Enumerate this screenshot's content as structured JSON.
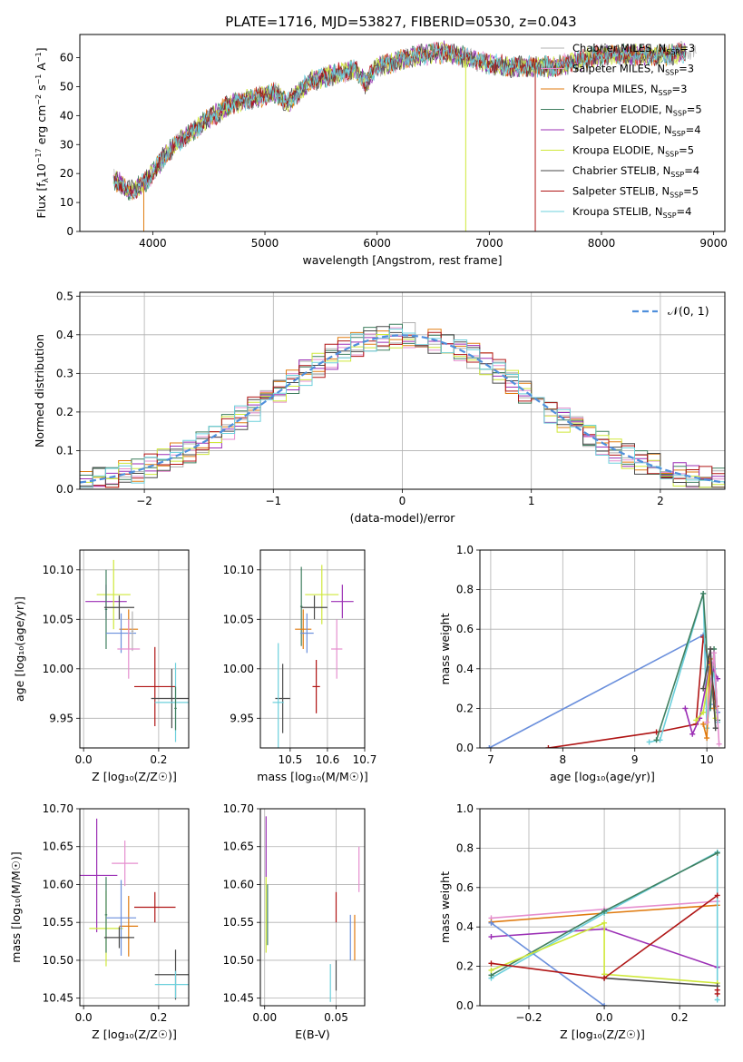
{
  "figure": {
    "title": "PLATE=1716, MJD=53827, FIBERID=0530, z=0.043"
  },
  "colors": {
    "chabrier_miles": "#b0b0b0",
    "salpeter_miles": "#e58fcf",
    "kroupa_miles": "#e07b10",
    "chabrier_elodie": "#3f7f5f",
    "salpeter_elodie": "#9b2fb5",
    "kroupa_elodie": "#cfe83a",
    "chabrier_stelib": "#4a4a4a",
    "salpeter_stelib": "#b01515",
    "kroupa_stelib": "#6cd0dc",
    "gauss": "#4f8fdc",
    "blue_line": "#6a8fdc"
  },
  "chart_data": [
    {
      "id": "spectrum",
      "type": "line",
      "title": "PLATE=1716, MJD=53827, FIBERID=0530, z=0.043",
      "xlabel": "wavelength [Angstrom, rest frame]",
      "ylabel_parts": [
        "Flux [f",
        "λ",
        "10",
        "−17",
        " erg cm",
        "−2",
        " s",
        "−1",
        " A",
        "−1",
        "]"
      ],
      "xlim": [
        3350,
        9100
      ],
      "ylim": [
        0,
        68
      ],
      "xticks": [
        "4000",
        "5000",
        "6000",
        "7000",
        "8000",
        "9000"
      ],
      "yticks": [
        "0",
        "10",
        "20",
        "30",
        "40",
        "50",
        "60"
      ],
      "grid": false,
      "legend_position": "upper-right",
      "legend": [
        {
          "label": "Chabrier MILES, N",
          "sub": "SSP",
          "tail": "=3"
        },
        {
          "label": "Salpeter MILES, N",
          "sub": "SSP",
          "tail": "=3"
        },
        {
          "label": "Kroupa MILES, N",
          "sub": "SSP",
          "tail": "=3"
        },
        {
          "label": "Chabrier ELODIE, N",
          "sub": "SSP",
          "tail": "=5"
        },
        {
          "label": "Salpeter ELODIE, N",
          "sub": "SSP",
          "tail": "=4"
        },
        {
          "label": "Kroupa ELODIE, N",
          "sub": "SSP",
          "tail": "=5"
        },
        {
          "label": "Chabrier STELIB, N",
          "sub": "SSP",
          "tail": "=4"
        },
        {
          "label": "Salpeter STELIB, N",
          "sub": "SSP",
          "tail": "=5"
        },
        {
          "label": "Kroupa STELIB, N",
          "sub": "SSP",
          "tail": "=4"
        }
      ],
      "continuum": [
        [
          3650,
          18
        ],
        [
          3800,
          14
        ],
        [
          3900,
          16
        ],
        [
          4000,
          20
        ],
        [
          4100,
          26
        ],
        [
          4200,
          30
        ],
        [
          4300,
          33
        ],
        [
          4400,
          36
        ],
        [
          4500,
          39
        ],
        [
          4700,
          44
        ],
        [
          4900,
          46
        ],
        [
          5100,
          48
        ],
        [
          5200,
          44
        ],
        [
          5400,
          52
        ],
        [
          5600,
          54
        ],
        [
          5800,
          56
        ],
        [
          5900,
          51
        ],
        [
          6000,
          57
        ],
        [
          6200,
          59
        ],
        [
          6400,
          61
        ],
        [
          6600,
          62
        ],
        [
          6800,
          60
        ],
        [
          7000,
          58
        ],
        [
          7200,
          57
        ],
        [
          7400,
          57
        ],
        [
          7600,
          57
        ],
        [
          7800,
          59
        ],
        [
          8000,
          61
        ],
        [
          8200,
          61
        ],
        [
          8400,
          61
        ],
        [
          8600,
          61
        ],
        [
          8750,
          62
        ]
      ]
    },
    {
      "id": "residuals",
      "type": "histogram",
      "xlabel": "(data-model)/error",
      "ylabel": "Normed distribution",
      "xlim": [
        -2.5,
        2.5
      ],
      "ylim": [
        0,
        0.51
      ],
      "xticks": [
        "−2",
        "−1",
        "0",
        "1",
        "2"
      ],
      "yticks": [
        "0.0",
        "0.1",
        "0.2",
        "0.3",
        "0.4",
        "0.5"
      ],
      "grid": true,
      "legend_position": "upper-right",
      "gauss_label": "𝒩(0, 1)",
      "bin_width": 0.1
    },
    {
      "id": "age_vs_Z",
      "type": "scatter",
      "xlabel": "Z [log₁₀(Z/Z☉)]",
      "ylabel": "age  [log₁₀(age/yr)]",
      "xlim": [
        -0.01,
        0.28
      ],
      "ylim": [
        9.92,
        10.12
      ],
      "xticks": [
        "0.0",
        "0.2"
      ],
      "yticks": [
        "9.95",
        "10.00",
        "10.05",
        "10.10"
      ],
      "grid": true,
      "points": [
        {
          "m": "salpeter_elodie",
          "x": 0.06,
          "xerr": 0.055,
          "y": 10.068,
          "yerr": 0.017
        },
        {
          "m": "kroupa_elodie",
          "x": 0.08,
          "xerr": 0.045,
          "y": 10.075,
          "yerr": 0.035
        },
        {
          "m": "chabrier_elodie",
          "x": 0.06,
          "xerr": 0.003,
          "y": 10.06,
          "yerr": 0.04
        },
        {
          "m": "chabrier_stelib",
          "x": 0.095,
          "xerr": 0.04,
          "y": 10.062,
          "yerr": 0.012
        },
        {
          "m": "kroupa_miles",
          "x": 0.12,
          "xerr": 0.025,
          "y": 10.04,
          "yerr": 0.02
        },
        {
          "m": "blue_line",
          "x": 0.1,
          "xerr": 0.04,
          "y": 10.036,
          "yerr": 0.02
        },
        {
          "m": "chabrier_miles",
          "x": 0.13,
          "xerr": 0.003,
          "y": 10.038,
          "yerr": 0.02
        },
        {
          "m": "salpeter_miles",
          "x": 0.12,
          "xerr": 0.03,
          "y": 10.02,
          "yerr": 0.03
        },
        {
          "m": "salpeter_stelib",
          "x": 0.19,
          "xerr": 0.055,
          "y": 9.982,
          "yerr": 0.04
        },
        {
          "m": "chabrier_stelib",
          "x": 0.235,
          "xerr": 0.055,
          "y": 9.97,
          "yerr": 0.03
        },
        {
          "m": "kroupa_stelib",
          "x": 0.245,
          "xerr": 0.055,
          "y": 9.966,
          "yerr": 0.04
        },
        {
          "m": "chabrier_elodie",
          "x": 0.245,
          "xerr": 0.003,
          "y": 9.96,
          "yerr": 0.022
        }
      ]
    },
    {
      "id": "age_vs_mass",
      "type": "scatter",
      "xlabel": "mass [log₁₀(M/M☉)]",
      "ylabel": "",
      "xlim": [
        10.42,
        10.7
      ],
      "ylim": [
        9.92,
        10.12
      ],
      "xticks": [
        "10.5",
        "10.6",
        "10.7"
      ],
      "yticks": [
        "9.95",
        "10.00",
        "10.05",
        "10.10"
      ],
      "grid": true,
      "points": [
        {
          "m": "salpeter_elodie",
          "x": 10.64,
          "xerr": 0.03,
          "y": 10.068,
          "yerr": 0.017
        },
        {
          "m": "kroupa_elodie",
          "x": 10.585,
          "xerr": 0.045,
          "y": 10.075,
          "yerr": 0.03
        },
        {
          "m": "chabrier_elodie",
          "x": 10.53,
          "xerr": 0.003,
          "y": 10.063,
          "yerr": 0.04
        },
        {
          "m": "chabrier_stelib",
          "x": 10.565,
          "xerr": 0.035,
          "y": 10.062,
          "yerr": 0.012
        },
        {
          "m": "kroupa_miles",
          "x": 10.535,
          "xerr": 0.022,
          "y": 10.04,
          "yerr": 0.02
        },
        {
          "m": "blue_line",
          "x": 10.545,
          "xerr": 0.018,
          "y": 10.036,
          "yerr": 0.02
        },
        {
          "m": "salpeter_miles",
          "x": 10.625,
          "xerr": 0.015,
          "y": 10.02,
          "yerr": 0.03
        },
        {
          "m": "salpeter_stelib",
          "x": 10.57,
          "xerr": 0.01,
          "y": 9.982,
          "yerr": 0.027
        },
        {
          "m": "chabrier_stelib",
          "x": 10.48,
          "xerr": 0.02,
          "y": 9.97,
          "yerr": 0.035
        },
        {
          "m": "kroupa_stelib",
          "x": 10.468,
          "xerr": 0.015,
          "y": 9.966,
          "yerr": 0.06
        }
      ]
    },
    {
      "id": "weight_vs_age",
      "type": "line",
      "xlabel": "age  [log₁₀(age/yr)]",
      "ylabel": "mass weight",
      "xlim": [
        6.85,
        10.25
      ],
      "ylim": [
        0,
        1
      ],
      "xticks": [
        "7",
        "8",
        "9",
        "10"
      ],
      "yticks": [
        "0.0",
        "0.2",
        "0.4",
        "0.6",
        "0.8",
        "1.0"
      ],
      "grid": true,
      "series": [
        {
          "m": "blue_line",
          "points": [
            [
              6.98,
              0
            ],
            [
              9.95,
              0.57
            ],
            [
              10.1,
              0.22
            ],
            [
              10.15,
              0.18
            ]
          ]
        },
        {
          "m": "salpeter_stelib",
          "points": [
            [
              7.8,
              0
            ],
            [
              9.3,
              0.08
            ],
            [
              9.85,
              0.12
            ],
            [
              9.95,
              0.56
            ],
            [
              10.05,
              0.4
            ],
            [
              10.13,
              0.21
            ]
          ]
        },
        {
          "m": "kroupa_stelib",
          "points": [
            [
              9.2,
              0.03
            ],
            [
              9.35,
              0.04
            ],
            [
              9.95,
              0.78
            ],
            [
              10.0,
              0.1
            ],
            [
              10.1,
              0.4
            ],
            [
              10.15,
              0.13
            ]
          ]
        },
        {
          "m": "chabrier_elodie",
          "points": [
            [
              9.3,
              0.04
            ],
            [
              9.95,
              0.78
            ],
            [
              10.05,
              0.2
            ],
            [
              10.1,
              0.5
            ],
            [
              10.15,
              0.14
            ]
          ]
        },
        {
          "m": "salpeter_elodie",
          "points": [
            [
              9.7,
              0.2
            ],
            [
              9.8,
              0.07
            ],
            [
              9.9,
              0.15
            ],
            [
              10.05,
              0.43
            ],
            [
              10.15,
              0.35
            ]
          ]
        },
        {
          "m": "kroupa_elodie",
          "points": [
            [
              9.85,
              0.14
            ],
            [
              9.95,
              0.18
            ],
            [
              10.05,
              0.42
            ],
            [
              10.12,
              0.15
            ]
          ]
        },
        {
          "m": "kroupa_miles",
          "points": [
            [
              9.95,
              0.12
            ],
            [
              10.0,
              0.05
            ],
            [
              10.05,
              0.45
            ],
            [
              10.1,
              0.2
            ]
          ]
        },
        {
          "m": "salpeter_miles",
          "points": [
            [
              10.0,
              0.13
            ],
            [
              10.1,
              0.48
            ],
            [
              10.17,
              0.02
            ]
          ]
        },
        {
          "m": "chabrier_stelib",
          "points": [
            [
              9.95,
              0.3
            ],
            [
              10.05,
              0.5
            ],
            [
              10.12,
              0.1
            ]
          ]
        }
      ]
    },
    {
      "id": "mass_vs_Z",
      "type": "scatter",
      "xlabel": "Z [log₁₀(Z/Z☉)]",
      "ylabel": "mass [log₁₀(M/M☉)]",
      "xlim": [
        -0.01,
        0.28
      ],
      "ylim": [
        10.44,
        10.7
      ],
      "xticks": [
        "0.0",
        "0.2"
      ],
      "yticks": [
        "10.45",
        "10.50",
        "10.55",
        "10.60",
        "10.65",
        "10.70"
      ],
      "grid": true,
      "points": [
        {
          "m": "salpeter_elodie",
          "x": 0.035,
          "xerr": 0.055,
          "y": 10.612,
          "yerr": 0.075
        },
        {
          "m": "salpeter_miles",
          "x": 0.11,
          "xerr": 0.035,
          "y": 10.628,
          "yerr": 0.03
        },
        {
          "m": "kroupa_elodie",
          "x": 0.06,
          "xerr": 0.045,
          "y": 10.542,
          "yerr": 0.05
        },
        {
          "m": "chabrier_elodie",
          "x": 0.06,
          "xerr": 0.003,
          "y": 10.56,
          "yerr": 0.05
        },
        {
          "m": "kroupa_miles",
          "x": 0.12,
          "xerr": 0.025,
          "y": 10.545,
          "yerr": 0.04
        },
        {
          "m": "blue_line",
          "x": 0.1,
          "xerr": 0.04,
          "y": 10.556,
          "yerr": 0.05
        },
        {
          "m": "chabrier_stelib",
          "x": 0.095,
          "xerr": 0.04,
          "y": 10.53,
          "yerr": 0.014
        },
        {
          "m": "salpeter_stelib",
          "x": 0.19,
          "xerr": 0.055,
          "y": 10.57,
          "yerr": 0.02
        },
        {
          "m": "chabrier_stelib",
          "x": 0.245,
          "xerr": 0.055,
          "y": 10.481,
          "yerr": 0.033
        },
        {
          "m": "kroupa_stelib",
          "x": 0.245,
          "xerr": 0.055,
          "y": 10.468,
          "yerr": 0.018
        }
      ]
    },
    {
      "id": "mass_vs_ebv",
      "type": "scatter",
      "xlabel": "E(B-V)",
      "ylabel": "",
      "xlim": [
        -0.003,
        0.07
      ],
      "ylim": [
        10.44,
        10.7
      ],
      "xticks": [
        "0.00",
        "0.05"
      ],
      "yticks": [
        "10.45",
        "10.50",
        "10.55",
        "10.60",
        "10.65",
        "10.70"
      ],
      "grid": true,
      "points": [
        {
          "m": "salpeter_elodie",
          "x": 0.001,
          "xerr": 0.0,
          "y": 10.65,
          "yerr": 0.04
        },
        {
          "m": "kroupa_elodie",
          "x": 0.001,
          "xerr": 0.0,
          "y": 10.56,
          "yerr": 0.05
        },
        {
          "m": "chabrier_elodie",
          "x": 0.002,
          "xerr": 0.0,
          "y": 10.56,
          "yerr": 0.04
        },
        {
          "m": "salpeter_miles",
          "x": 0.066,
          "xerr": 0.0,
          "y": 10.62,
          "yerr": 0.03
        },
        {
          "m": "salpeter_stelib",
          "x": 0.05,
          "xerr": 0.0,
          "y": 10.57,
          "yerr": 0.02
        },
        {
          "m": "blue_line",
          "x": 0.06,
          "xerr": 0.0,
          "y": 10.53,
          "yerr": 0.03
        },
        {
          "m": "kroupa_miles",
          "x": 0.063,
          "xerr": 0.0,
          "y": 10.53,
          "yerr": 0.03
        },
        {
          "m": "chabrier_stelib",
          "x": 0.05,
          "xerr": 0.0,
          "y": 10.48,
          "yerr": 0.02
        },
        {
          "m": "kroupa_stelib",
          "x": 0.046,
          "xerr": 0.0,
          "y": 10.47,
          "yerr": 0.025
        }
      ]
    },
    {
      "id": "weight_vs_Z",
      "type": "line",
      "xlabel": "Z [log₁₀(Z/Z☉)]",
      "ylabel": "mass weight",
      "xlim": [
        -0.33,
        0.32
      ],
      "ylim": [
        0,
        1
      ],
      "xticks": [
        "−0.2",
        "0.0",
        "0.2"
      ],
      "yticks": [
        "0.0",
        "0.2",
        "0.4",
        "0.6",
        "0.8",
        "1.0"
      ],
      "grid": true,
      "series": [
        {
          "m": "salpeter_miles",
          "points": [
            [
              -0.3,
              0.445
            ],
            [
              0.0,
              0.49
            ],
            [
              0.3,
              0.53
            ]
          ]
        },
        {
          "m": "kroupa_miles",
          "points": [
            [
              -0.3,
              0.425
            ],
            [
              0.0,
              0.47
            ],
            [
              0.3,
              0.51
            ]
          ]
        },
        {
          "m": "salpeter_elodie",
          "points": [
            [
              -0.3,
              0.35
            ],
            [
              0.0,
              0.39
            ],
            [
              0.3,
              0.195
            ]
          ]
        },
        {
          "m": "kroupa_stelib",
          "points": [
            [
              -0.3,
              0.14
            ],
            [
              0.0,
              0.47
            ],
            [
              0.3,
              0.78
            ],
            [
              0.3,
              0.03
            ]
          ]
        },
        {
          "m": "chabrier_elodie",
          "points": [
            [
              -0.3,
              0.155
            ],
            [
              0.0,
              0.48
            ],
            [
              0.3,
              0.775
            ]
          ]
        },
        {
          "m": "blue_line",
          "points": [
            [
              -0.3,
              0.42
            ],
            [
              0.0,
              0.0
            ]
          ]
        },
        {
          "m": "kroupa_elodie",
          "points": [
            [
              -0.3,
              0.18
            ],
            [
              0.0,
              0.42
            ],
            [
              0.0,
              0.16
            ],
            [
              0.3,
              0.115
            ]
          ]
        },
        {
          "m": "chabrier_stelib",
          "points": [
            [
              0.0,
              0.14
            ],
            [
              0.3,
              0.1
            ]
          ]
        },
        {
          "m": "salpeter_stelib",
          "points": [
            [
              -0.3,
              0.215
            ],
            [
              0.0,
              0.14
            ],
            [
              0.3,
              0.56
            ]
          ]
        },
        {
          "m": "salpeter_stelib",
          "points": [
            [
              0.3,
              0.08
            ],
            [
              0.3,
              0.06
            ]
          ]
        }
      ]
    }
  ]
}
